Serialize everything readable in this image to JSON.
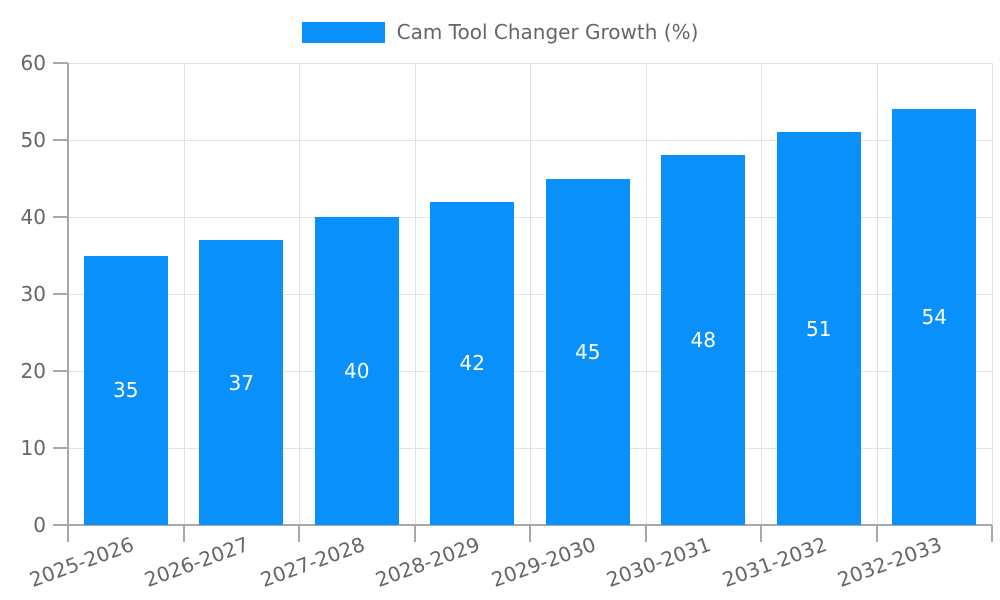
{
  "legend": {
    "label": "Cam Tool Changer Growth (%)"
  },
  "chart_data": {
    "type": "bar",
    "title": "Cam Tool Changer Growth (%)",
    "categories": [
      "2025-2026",
      "2026-2027",
      "2027-2028",
      "2028-2029",
      "2029-2030",
      "2030-2031",
      "2031-2032",
      "2032-2033"
    ],
    "values": [
      35,
      37,
      40,
      42,
      45,
      48,
      51,
      54
    ],
    "series_name": "Cam Tool Changer Growth (%)",
    "xlabel": "",
    "ylabel": "",
    "ylim": [
      0,
      60
    ],
    "yticks": [
      0,
      10,
      20,
      30,
      40,
      50,
      60
    ],
    "grid": true,
    "legend_position": "top-center",
    "value_labels": "inside-center",
    "colors": {
      "bar": "#0a90fa",
      "bar_label_text": "#ffffff",
      "axis_line": "#a8a8a8",
      "grid_line": "#e3e3e3",
      "tick_text": "#666666",
      "legend_text": "#666666",
      "background": "#ffffff"
    }
  }
}
